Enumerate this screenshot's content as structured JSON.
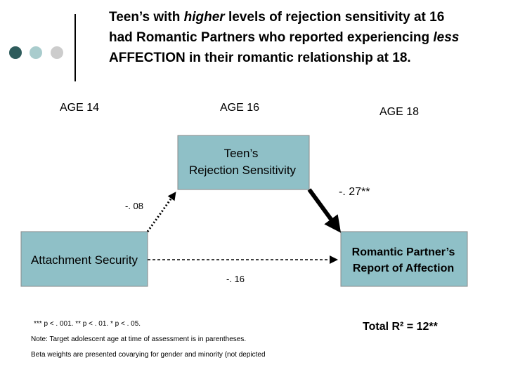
{
  "header": {
    "title_parts": [
      "Teen’s with ",
      "higher",
      " levels of rejection sensitivity at 16 had Romantic Partners who reported experiencing ",
      "less",
      " AFFECTION in their romantic relationship at 18."
    ]
  },
  "ages": [
    "AGE 14",
    "AGE 16",
    "AGE 18"
  ],
  "nodes": [
    {
      "label": [
        "Teen’s",
        "Rejection Sensitivity"
      ]
    },
    {
      "label": [
        "Attachment Security"
      ]
    },
    {
      "label": [
        "Romantic Partner’s",
        "Report of Affection"
      ]
    }
  ],
  "edges": [
    {
      "label": "-. 27**"
    },
    {
      "label": "-. 08"
    },
    {
      "label": "-. 16"
    }
  ],
  "footnotes": [
    "*** p < . 001.  ** p < . 01.  * p < . 05.",
    "Note: Target adolescent age at time of assessment is in parentheses.",
    "Beta weights are presented covarying for gender and minority (not depicted"
  ],
  "total": "Total R² = 12**"
}
